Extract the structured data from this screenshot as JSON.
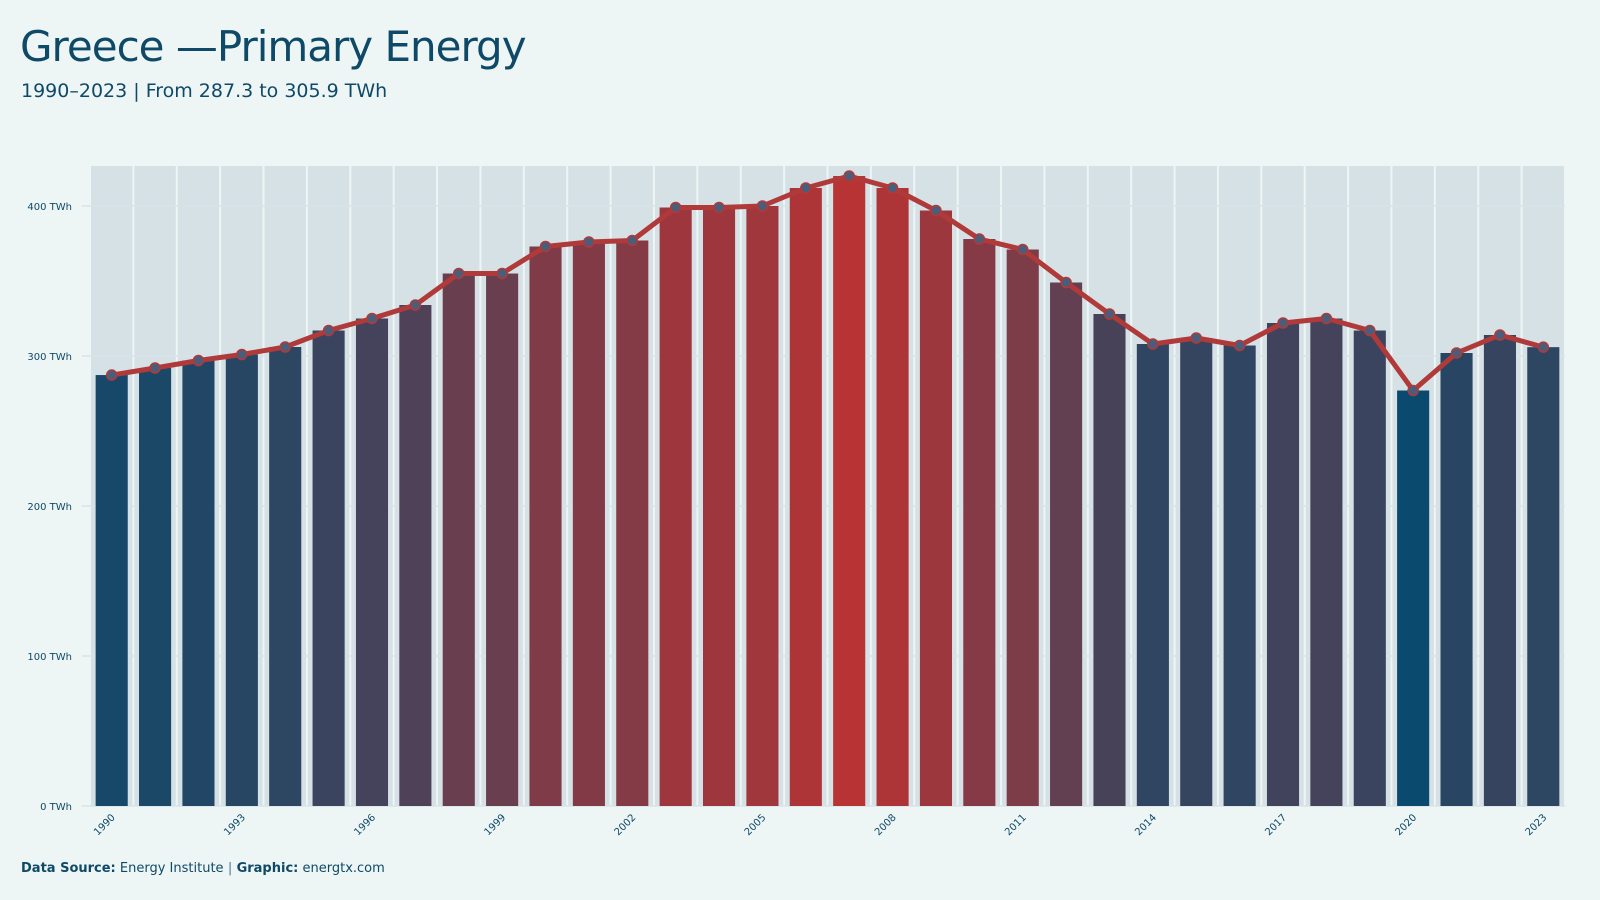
{
  "header": {
    "title": "Greece —Primary Energy",
    "subtitle": "1990–2023 | From 287.3 to 305.9 TWh"
  },
  "footer": {
    "source_label": "Data Source:",
    "source_value": "Energy Institute",
    "separator": "|",
    "graphic_label": "Graphic:",
    "graphic_value": "energtx.com"
  },
  "colors": {
    "background": "#eef5f5",
    "text": "#0e4a68",
    "line": "#b03a3a",
    "marker": "#4a5d7a",
    "low": "#0a4a6e",
    "high": "#b83434",
    "grid": "#d6e4e8",
    "band": "#d6e1e6"
  },
  "chart_data": {
    "type": "bar",
    "title": "Greece —Primary Energy",
    "subtitle": "1990–2023 | From 287.3 to 305.9 TWh",
    "x": [
      1990,
      1991,
      1992,
      1993,
      1994,
      1995,
      1996,
      1997,
      1998,
      1999,
      2000,
      2001,
      2002,
      2003,
      2004,
      2005,
      2006,
      2007,
      2008,
      2009,
      2010,
      2011,
      2012,
      2013,
      2014,
      2015,
      2016,
      2017,
      2018,
      2019,
      2020,
      2021,
      2022,
      2023
    ],
    "values": [
      287.3,
      292,
      297,
      301,
      306,
      317,
      325,
      334,
      355,
      355,
      373,
      376,
      377,
      399,
      399,
      400,
      412,
      420,
      412,
      397,
      378,
      371,
      349,
      328,
      308,
      312,
      307,
      322,
      325,
      317,
      277,
      302,
      314,
      305.9
    ],
    "overlay": "line with markers",
    "x_tick_labels": [
      "1990",
      "1993",
      "1996",
      "1999",
      "2002",
      "2005",
      "2008",
      "2011",
      "2014",
      "2017",
      "2020",
      "2023"
    ],
    "y_ticks": [
      0,
      100,
      200,
      300,
      400
    ],
    "y_tick_labels": [
      "0 TWh",
      "100 TWh",
      "200 TWh",
      "300 TWh",
      "400 TWh"
    ],
    "ylim": [
      0,
      400
    ],
    "xlabel": "",
    "ylabel": "",
    "grid": "horizontal"
  }
}
